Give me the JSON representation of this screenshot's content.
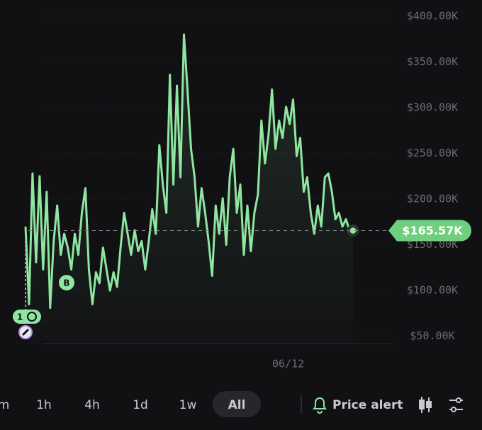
{
  "chart_data": {
    "type": "line",
    "categories": [
      null,
      null,
      null,
      null,
      null,
      null,
      null,
      null,
      null,
      null,
      null,
      null,
      null,
      null,
      null,
      null,
      null,
      null,
      null,
      null,
      null,
      null,
      null,
      null,
      null,
      null,
      null,
      null,
      null,
      null,
      null,
      null,
      null,
      null,
      null,
      null,
      null,
      null,
      null,
      null,
      null,
      null,
      null,
      null,
      null,
      null,
      null,
      null,
      null,
      null,
      null,
      null,
      null,
      null,
      null,
      null,
      null,
      null,
      null,
      null,
      null,
      null,
      null,
      null,
      null,
      null,
      null,
      null,
      null,
      null,
      null,
      null,
      null,
      null,
      null,
      "06/12",
      null,
      null,
      null,
      null,
      null,
      null,
      null,
      null,
      null,
      null,
      null,
      null,
      null,
      null,
      null,
      null,
      null,
      null
    ],
    "series": [
      {
        "color": "#8ee6a0",
        "values": [
          170000,
          85000,
          228000,
          131000,
          225000,
          123000,
          208000,
          81000,
          154000,
          193000,
          139000,
          162000,
          147000,
          123000,
          162000,
          139000,
          185000,
          212000,
          123000,
          85000,
          120000,
          108000,
          147000,
          123000,
          100000,
          120000,
          104000,
          147000,
          185000,
          162000,
          139000,
          166000,
          143000,
          154000,
          123000,
          154000,
          189000,
          162000,
          259000,
          216000,
          185000,
          336000,
          216000,
          324000,
          224000,
          380000,
          320000,
          255000,
          224000,
          170000,
          212000,
          185000,
          154000,
          116000,
          193000,
          162000,
          201000,
          150000,
          224000,
          255000,
          185000,
          216000,
          139000,
          193000,
          143000,
          185000,
          205000,
          286000,
          239000,
          270000,
          320000,
          255000,
          286000,
          267000,
          301000,
          282000,
          309000,
          247000,
          267000,
          208000,
          224000,
          185000,
          162000,
          193000,
          170000,
          224000,
          228000,
          208000,
          178000,
          185000,
          170000,
          178000,
          166000,
          165570
        ]
      }
    ],
    "ylim": [
      42000,
      410000
    ],
    "yticks": [
      {
        "value": 50000,
        "label": "$50.00K"
      },
      {
        "value": 100000,
        "label": "$100.00K"
      },
      {
        "value": 150000,
        "label": "$150.00K"
      },
      {
        "value": 200000,
        "label": "$200.00K"
      },
      {
        "value": 250000,
        "label": "$250.00K"
      },
      {
        "value": 300000,
        "label": "$300.00K"
      },
      {
        "value": 350000,
        "label": "$350.00K"
      },
      {
        "value": 400000,
        "label": "$400.00K"
      }
    ],
    "grid": true,
    "current_price": {
      "value": 165570,
      "label": "$165.57K"
    },
    "annotations": [
      "B",
      "1"
    ]
  },
  "toolbar": {
    "intervals": [
      "m",
      "1h",
      "4h",
      "1d",
      "1w",
      "All"
    ],
    "alert": "Price alert"
  }
}
